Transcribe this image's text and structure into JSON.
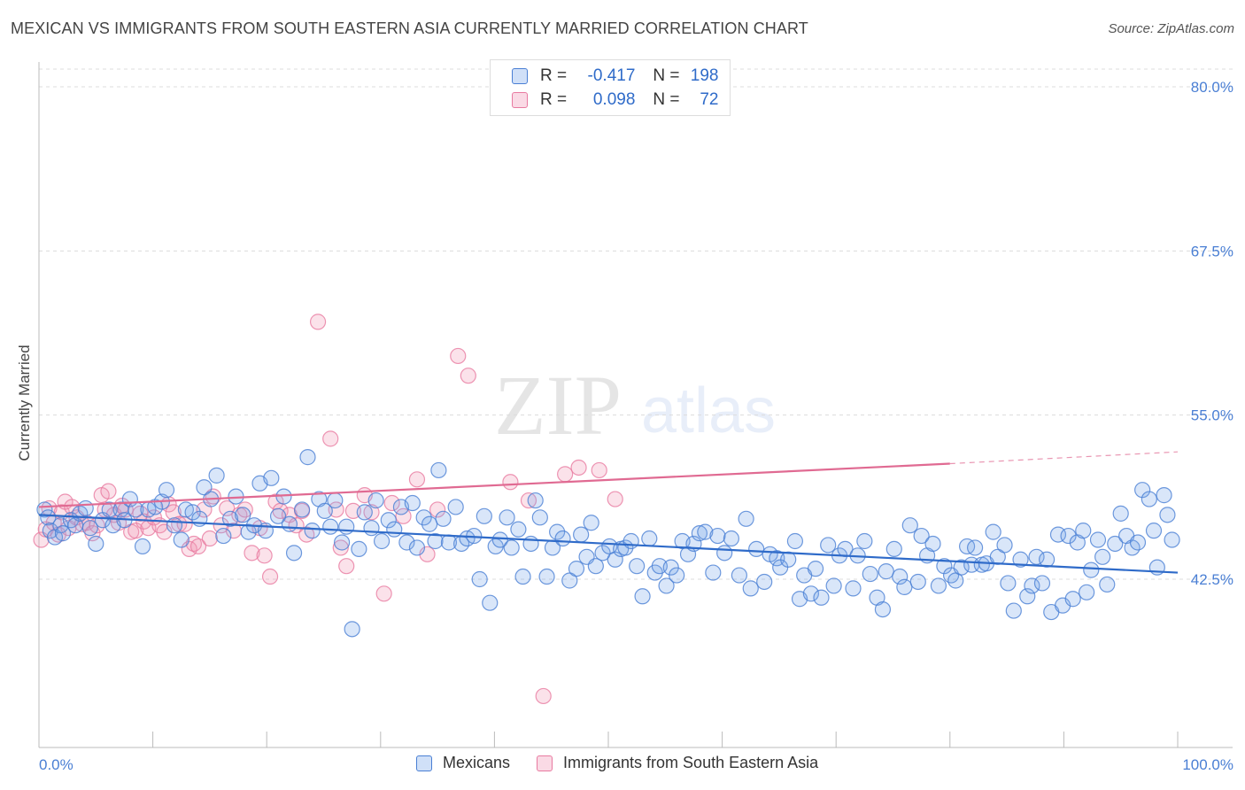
{
  "header": {
    "title": "MEXICAN VS IMMIGRANTS FROM SOUTH EASTERN ASIA CURRENTLY MARRIED CORRELATION CHART",
    "source": "Source: ZipAtlas.com"
  },
  "watermark": {
    "zip": "ZIP",
    "atlas": "atlas"
  },
  "legend_top": {
    "rows": [
      {
        "r_label": "R =",
        "r_value": "-0.417",
        "n_label": "N =",
        "n_value": "198",
        "color": "#4a7fd4"
      },
      {
        "r_label": "R =",
        "r_value": "0.098",
        "n_label": "N =",
        "n_value": "72",
        "color": "#e87aa0"
      }
    ]
  },
  "chart_data": {
    "type": "scatter",
    "title": "MEXICAN VS IMMIGRANTS FROM SOUTH EASTERN ASIA CURRENTLY MARRIED CORRELATION CHART",
    "xlabel": "",
    "ylabel": "Currently Married",
    "xlim": [
      0,
      100
    ],
    "ylim": [
      30,
      82
    ],
    "y_ticks": [
      {
        "value": 42.5,
        "label": "42.5%"
      },
      {
        "value": 55.0,
        "label": "55.0%"
      },
      {
        "value": 67.5,
        "label": "67.5%"
      },
      {
        "value": 80.0,
        "label": "80.0%"
      }
    ],
    "x_tick_labels": [
      {
        "value": 0,
        "label": "0.0%"
      },
      {
        "value": 100,
        "label": "100.0%"
      }
    ],
    "x_minor_ticks": [
      10,
      20,
      30,
      40,
      50,
      60,
      70,
      80,
      90,
      100
    ],
    "grid": true,
    "legend_position": "bottom",
    "series": [
      {
        "name": "Mexicans",
        "color": "#4a7fd4",
        "fill": "rgba(120,165,235,0.28)",
        "trend": {
          "x": [
            0,
            100
          ],
          "y": [
            47.4,
            43.0
          ]
        },
        "points": [
          [
            0.5,
            47.8
          ],
          [
            0.8,
            47.2
          ],
          [
            1.0,
            46.2
          ],
          [
            1.4,
            45.7
          ],
          [
            1.9,
            46.6
          ],
          [
            2.1,
            46.0
          ],
          [
            2.8,
            47.0
          ],
          [
            3.2,
            46.6
          ],
          [
            3.6,
            47.5
          ],
          [
            4.1,
            47.9
          ],
          [
            4.5,
            46.4
          ],
          [
            5.0,
            45.2
          ],
          [
            5.6,
            47.0
          ],
          [
            6.2,
            47.8
          ],
          [
            6.5,
            46.6
          ],
          [
            7.2,
            47.8
          ],
          [
            7.5,
            47.0
          ],
          [
            8.0,
            48.6
          ],
          [
            8.5,
            47.8
          ],
          [
            9.1,
            45.0
          ],
          [
            9.6,
            47.8
          ],
          [
            10.2,
            48.0
          ],
          [
            10.8,
            48.4
          ],
          [
            11.2,
            49.3
          ],
          [
            11.9,
            46.6
          ],
          [
            12.5,
            45.5
          ],
          [
            12.9,
            47.8
          ],
          [
            13.5,
            47.6
          ],
          [
            14.1,
            47.1
          ],
          [
            14.5,
            49.5
          ],
          [
            15.1,
            48.6
          ],
          [
            15.6,
            50.4
          ],
          [
            16.2,
            45.8
          ],
          [
            16.8,
            47.1
          ],
          [
            17.3,
            48.8
          ],
          [
            17.9,
            47.4
          ],
          [
            18.4,
            46.1
          ],
          [
            18.9,
            46.6
          ],
          [
            19.4,
            49.8
          ],
          [
            19.9,
            46.2
          ],
          [
            20.4,
            50.2
          ],
          [
            21.0,
            47.3
          ],
          [
            21.5,
            48.8
          ],
          [
            22.0,
            46.7
          ],
          [
            22.4,
            44.5
          ],
          [
            23.1,
            47.8
          ],
          [
            23.6,
            51.8
          ],
          [
            24.0,
            46.2
          ],
          [
            24.6,
            48.6
          ],
          [
            25.1,
            47.7
          ],
          [
            25.6,
            46.5
          ],
          [
            26.0,
            48.5
          ],
          [
            26.6,
            45.3
          ],
          [
            27.0,
            46.5
          ],
          [
            27.5,
            38.7
          ],
          [
            28.1,
            44.8
          ],
          [
            28.6,
            47.6
          ],
          [
            29.2,
            46.4
          ],
          [
            29.6,
            48.5
          ],
          [
            30.1,
            45.4
          ],
          [
            30.7,
            47.0
          ],
          [
            31.2,
            46.3
          ],
          [
            31.8,
            48.0
          ],
          [
            32.3,
            45.3
          ],
          [
            32.8,
            48.3
          ],
          [
            33.2,
            44.9
          ],
          [
            33.8,
            47.2
          ],
          [
            34.3,
            46.7
          ],
          [
            34.8,
            45.4
          ],
          [
            35.1,
            50.8
          ],
          [
            35.5,
            47.1
          ],
          [
            36.0,
            45.3
          ],
          [
            36.6,
            48.0
          ],
          [
            37.1,
            45.2
          ],
          [
            37.6,
            45.6
          ],
          [
            38.2,
            45.8
          ],
          [
            38.7,
            42.5
          ],
          [
            39.1,
            47.3
          ],
          [
            39.6,
            40.7
          ],
          [
            40.1,
            45.0
          ],
          [
            40.5,
            45.5
          ],
          [
            41.1,
            47.2
          ],
          [
            41.5,
            44.9
          ],
          [
            42.1,
            46.3
          ],
          [
            42.5,
            42.7
          ],
          [
            43.2,
            45.2
          ],
          [
            43.6,
            48.5
          ],
          [
            44.0,
            47.2
          ],
          [
            44.6,
            42.7
          ],
          [
            45.1,
            44.9
          ],
          [
            45.5,
            46.1
          ],
          [
            46.0,
            45.6
          ],
          [
            46.6,
            42.4
          ],
          [
            47.2,
            43.3
          ],
          [
            47.6,
            45.9
          ],
          [
            48.1,
            44.2
          ],
          [
            48.5,
            46.8
          ],
          [
            48.9,
            43.5
          ],
          [
            49.5,
            44.5
          ],
          [
            50.1,
            45.0
          ],
          [
            50.6,
            44.0
          ],
          [
            51.1,
            44.8
          ],
          [
            51.5,
            44.9
          ],
          [
            52.0,
            45.4
          ],
          [
            52.5,
            43.5
          ],
          [
            53.0,
            41.2
          ],
          [
            53.6,
            45.6
          ],
          [
            54.1,
            43.0
          ],
          [
            54.5,
            43.5
          ],
          [
            55.1,
            42.0
          ],
          [
            55.5,
            43.4
          ],
          [
            56.0,
            42.8
          ],
          [
            56.5,
            45.4
          ],
          [
            57.0,
            44.4
          ],
          [
            57.5,
            45.2
          ],
          [
            58.0,
            46.0
          ],
          [
            58.5,
            46.1
          ],
          [
            59.2,
            43.0
          ],
          [
            59.6,
            45.8
          ],
          [
            60.2,
            44.5
          ],
          [
            60.8,
            45.6
          ],
          [
            61.5,
            42.8
          ],
          [
            62.1,
            47.1
          ],
          [
            62.5,
            41.8
          ],
          [
            63.0,
            44.8
          ],
          [
            63.7,
            42.3
          ],
          [
            64.2,
            44.4
          ],
          [
            64.8,
            44.1
          ],
          [
            65.1,
            43.4
          ],
          [
            65.8,
            44.0
          ],
          [
            66.4,
            45.4
          ],
          [
            66.8,
            41.0
          ],
          [
            67.2,
            42.8
          ],
          [
            67.8,
            41.4
          ],
          [
            68.2,
            43.3
          ],
          [
            68.7,
            41.1
          ],
          [
            69.3,
            45.1
          ],
          [
            69.8,
            42.0
          ],
          [
            70.3,
            44.3
          ],
          [
            70.8,
            44.8
          ],
          [
            71.5,
            41.8
          ],
          [
            71.9,
            44.3
          ],
          [
            72.5,
            45.4
          ],
          [
            73.0,
            42.9
          ],
          [
            73.6,
            41.1
          ],
          [
            74.1,
            40.2
          ],
          [
            74.4,
            43.1
          ],
          [
            75.1,
            44.8
          ],
          [
            75.6,
            42.7
          ],
          [
            76.0,
            41.9
          ],
          [
            76.5,
            46.6
          ],
          [
            77.2,
            42.3
          ],
          [
            77.5,
            45.8
          ],
          [
            78.0,
            44.3
          ],
          [
            78.5,
            45.2
          ],
          [
            79.0,
            42.0
          ],
          [
            79.5,
            43.5
          ],
          [
            80.1,
            42.8
          ],
          [
            80.5,
            42.4
          ],
          [
            81.0,
            43.4
          ],
          [
            81.5,
            45.0
          ],
          [
            81.9,
            43.6
          ],
          [
            82.2,
            44.9
          ],
          [
            82.8,
            43.6
          ],
          [
            83.2,
            43.7
          ],
          [
            83.8,
            46.1
          ],
          [
            84.2,
            44.2
          ],
          [
            84.8,
            45.1
          ],
          [
            85.1,
            42.2
          ],
          [
            85.6,
            40.1
          ],
          [
            86.2,
            44.0
          ],
          [
            86.8,
            41.2
          ],
          [
            87.2,
            42.0
          ],
          [
            87.6,
            44.2
          ],
          [
            88.1,
            42.2
          ],
          [
            88.5,
            44.0
          ],
          [
            88.9,
            40.0
          ],
          [
            89.5,
            45.9
          ],
          [
            89.9,
            40.5
          ],
          [
            90.4,
            45.8
          ],
          [
            90.8,
            41.0
          ],
          [
            91.2,
            45.3
          ],
          [
            91.7,
            46.2
          ],
          [
            92.0,
            41.5
          ],
          [
            92.4,
            43.2
          ],
          [
            93.0,
            45.5
          ],
          [
            93.4,
            44.2
          ],
          [
            93.8,
            42.1
          ],
          [
            94.5,
            45.2
          ],
          [
            95.0,
            47.5
          ],
          [
            95.5,
            45.8
          ],
          [
            96.0,
            44.9
          ],
          [
            96.5,
            45.3
          ],
          [
            96.9,
            49.3
          ],
          [
            97.5,
            48.6
          ],
          [
            97.9,
            46.2
          ],
          [
            98.2,
            43.4
          ],
          [
            98.8,
            48.9
          ],
          [
            99.1,
            47.4
          ],
          [
            99.5,
            45.5
          ]
        ]
      },
      {
        "name": "Immigrants from South Eastern Asia",
        "color": "#e87aa0",
        "fill": "rgba(240,150,180,0.28)",
        "trend": {
          "x": [
            0,
            80
          ],
          "y": [
            48.0,
            51.3
          ]
        },
        "trend_dashed": {
          "x": [
            80,
            100
          ],
          "y": [
            51.3,
            52.2
          ]
        },
        "points": [
          [
            0.2,
            45.5
          ],
          [
            0.6,
            46.3
          ],
          [
            0.9,
            47.9
          ],
          [
            1.3,
            46.8
          ],
          [
            1.7,
            45.9
          ],
          [
            2.0,
            47.6
          ],
          [
            2.3,
            48.4
          ],
          [
            2.6,
            46.4
          ],
          [
            2.9,
            48.0
          ],
          [
            3.3,
            47.2
          ],
          [
            3.8,
            46.7
          ],
          [
            4.2,
            46.8
          ],
          [
            4.7,
            46.0
          ],
          [
            5.1,
            46.6
          ],
          [
            5.5,
            48.9
          ],
          [
            5.8,
            47.8
          ],
          [
            6.1,
            49.2
          ],
          [
            6.6,
            47.4
          ],
          [
            7.0,
            46.8
          ],
          [
            7.3,
            48.1
          ],
          [
            7.6,
            47.8
          ],
          [
            8.1,
            46.1
          ],
          [
            8.5,
            46.2
          ],
          [
            8.9,
            47.5
          ],
          [
            9.2,
            46.9
          ],
          [
            9.6,
            46.4
          ],
          [
            10.1,
            47.2
          ],
          [
            10.6,
            46.6
          ],
          [
            11.0,
            46.1
          ],
          [
            11.4,
            48.2
          ],
          [
            11.8,
            47.6
          ],
          [
            12.3,
            46.7
          ],
          [
            12.8,
            46.7
          ],
          [
            13.2,
            44.8
          ],
          [
            13.6,
            45.2
          ],
          [
            14.0,
            45.0
          ],
          [
            14.5,
            47.8
          ],
          [
            15.0,
            45.6
          ],
          [
            15.3,
            48.8
          ],
          [
            16.0,
            46.6
          ],
          [
            16.5,
            47.9
          ],
          [
            17.1,
            46.2
          ],
          [
            17.6,
            47.4
          ],
          [
            18.1,
            47.8
          ],
          [
            18.7,
            44.5
          ],
          [
            19.4,
            46.4
          ],
          [
            19.8,
            44.3
          ],
          [
            20.3,
            42.7
          ],
          [
            20.8,
            48.4
          ],
          [
            21.2,
            47.7
          ],
          [
            22.0,
            47.4
          ],
          [
            22.6,
            46.6
          ],
          [
            23.1,
            47.7
          ],
          [
            23.5,
            45.9
          ],
          [
            24.5,
            62.1
          ],
          [
            25.6,
            53.2
          ],
          [
            26.1,
            47.8
          ],
          [
            26.5,
            44.9
          ],
          [
            27.0,
            43.5
          ],
          [
            27.6,
            47.7
          ],
          [
            28.6,
            48.9
          ],
          [
            29.2,
            47.6
          ],
          [
            30.3,
            41.4
          ],
          [
            31.0,
            48.3
          ],
          [
            32.0,
            47.3
          ],
          [
            33.2,
            50.1
          ],
          [
            34.1,
            44.4
          ],
          [
            35.0,
            47.8
          ],
          [
            36.8,
            59.5
          ],
          [
            37.7,
            58.0
          ],
          [
            41.4,
            49.9
          ],
          [
            43.0,
            48.5
          ],
          [
            44.3,
            33.6
          ],
          [
            46.2,
            50.5
          ],
          [
            47.4,
            51.0
          ],
          [
            49.2,
            50.8
          ],
          [
            50.6,
            48.6
          ]
        ]
      }
    ]
  },
  "bottom_legend": [
    {
      "label": "Mexicans",
      "color": "#4a7fd4"
    },
    {
      "label": "Immigrants from South Eastern Asia",
      "color": "#e87aa0"
    }
  ]
}
